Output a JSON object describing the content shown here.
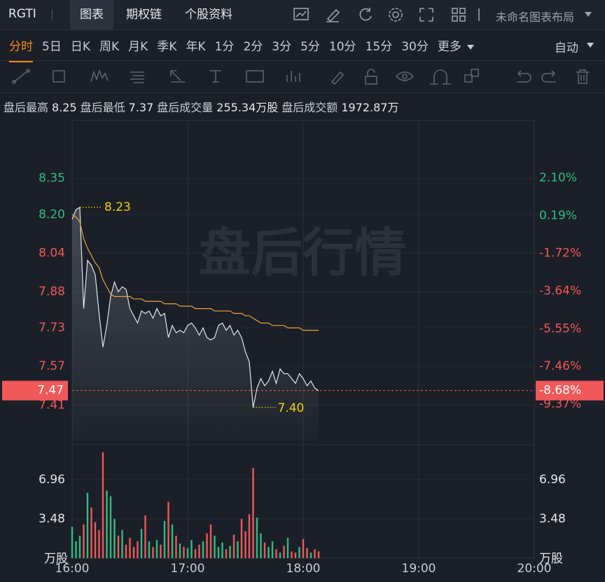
{
  "header": {
    "symbol": "RGTI",
    "tabs": [
      "图表",
      "期权链",
      "个股资料"
    ],
    "layout_name": "未命名图表布局"
  },
  "periods": [
    "分时",
    "5日",
    "日K",
    "周K",
    "月K",
    "季K",
    "年K",
    "1分",
    "2分",
    "3分",
    "5分",
    "10分",
    "15分",
    "30分",
    "更多"
  ],
  "scale_mode": "自动",
  "info": [
    {
      "label": "盘后最高",
      "value": "8.25"
    },
    {
      "label": "盘后最低",
      "value": "7.37"
    },
    {
      "label": "盘后成交量",
      "value": "255.34万股"
    },
    {
      "label": "盘后成交额",
      "value": "1972.87万"
    }
  ],
  "chart_data": {
    "type": "line",
    "watermark": "盘后行情",
    "xlim": [
      "16:00",
      "20:00"
    ],
    "xticks": [
      "16:00",
      "17:00",
      "18:00",
      "19:00",
      "20:00"
    ],
    "x": [
      "16:00",
      "16:02",
      "16:04",
      "16:06",
      "16:08",
      "16:10",
      "16:12",
      "16:14",
      "16:16",
      "16:18",
      "16:20",
      "16:22",
      "16:24",
      "16:26",
      "16:28",
      "16:30",
      "16:32",
      "16:34",
      "16:36",
      "16:38",
      "16:40",
      "16:42",
      "16:44",
      "16:46",
      "16:48",
      "16:50",
      "16:52",
      "16:54",
      "16:56",
      "16:58",
      "17:00",
      "17:02",
      "17:04",
      "17:06",
      "17:08",
      "17:10",
      "17:12",
      "17:14",
      "17:16",
      "17:18",
      "17:20",
      "17:22",
      "17:24",
      "17:26",
      "17:28",
      "17:30",
      "17:32",
      "17:34",
      "17:36",
      "17:38",
      "17:40",
      "17:42",
      "17:44",
      "17:46",
      "17:48",
      "17:50",
      "17:52",
      "17:54",
      "17:56",
      "17:58",
      "18:00",
      "18:02",
      "18:04",
      "18:06",
      "18:08"
    ],
    "ylim": [
      7.26,
      8.59
    ],
    "yticks": [
      8.35,
      {
        "value": 8.2,
        "label": "8.20"
      },
      8.04,
      7.88,
      7.73,
      7.57,
      7.41
    ],
    "y2lim": [
      -11.25,
      5.01
    ],
    "y2ticks": [
      {
        "value": 2.1,
        "label": "2.10%"
      },
      {
        "value": 0.19,
        "label": "0.19%"
      },
      {
        "value": -1.72,
        "label": "-1.72%"
      },
      {
        "value": -3.64,
        "label": "-3.64%"
      },
      {
        "value": -5.55,
        "label": "-5.55%"
      },
      {
        "value": -7.46,
        "label": "-7.46%"
      },
      {
        "value": -9.37,
        "label": "-9.37%"
      }
    ],
    "up_color": "#2dbd85",
    "down_color": "#f0585a",
    "series": [
      {
        "color": "#e3e6eb",
        "values": [
          8.18,
          8.22,
          8.23,
          7.81,
          8.01,
          7.99,
          7.95,
          7.79,
          7.65,
          7.74,
          7.86,
          7.92,
          7.88,
          7.9,
          7.89,
          7.81,
          7.78,
          7.75,
          7.8,
          7.79,
          7.8,
          7.77,
          7.81,
          7.78,
          7.79,
          7.69,
          7.74,
          7.71,
          7.72,
          7.71,
          7.74,
          7.75,
          7.73,
          7.7,
          7.73,
          7.69,
          7.68,
          7.69,
          7.74,
          7.75,
          7.72,
          7.74,
          7.7,
          7.72,
          7.69,
          7.63,
          7.59,
          7.4,
          7.48,
          7.52,
          7.49,
          7.51,
          7.55,
          7.5,
          7.56,
          7.54,
          7.54,
          7.52,
          7.5,
          7.54,
          7.52,
          7.49,
          7.51,
          7.48,
          7.47
        ]
      },
      {
        "color": "#e8a33d",
        "values": [
          8.2,
          8.19,
          8.17,
          8.1,
          8.06,
          8.03,
          8.0,
          7.98,
          7.93,
          7.9,
          7.87,
          7.86,
          7.86,
          7.86,
          7.86,
          7.86,
          7.85,
          7.85,
          7.85,
          7.84,
          7.84,
          7.84,
          7.84,
          7.84,
          7.83,
          7.83,
          7.83,
          7.83,
          7.82,
          7.82,
          7.82,
          7.82,
          7.81,
          7.81,
          7.81,
          7.81,
          7.81,
          7.8,
          7.8,
          7.8,
          7.8,
          7.8,
          7.79,
          7.79,
          7.79,
          7.78,
          7.78,
          7.77,
          7.76,
          7.75,
          7.75,
          7.75,
          7.74,
          7.74,
          7.74,
          7.74,
          7.73,
          7.73,
          7.73,
          7.73,
          7.72,
          7.72,
          7.72,
          7.72,
          7.72
        ]
      }
    ],
    "high_mark": {
      "x": "16:04",
      "value": 8.23
    },
    "low_mark": {
      "x": "17:34",
      "value": 7.4,
      "label": "7.40"
    },
    "last_price": 7.47,
    "last_change": {
      "value": -8.68,
      "label": "-8.68%"
    },
    "last_color": "#f0585a",
    "volume": {
      "unit": "万股",
      "ylim": [
        0,
        9.76
      ],
      "yticks": [
        6.96,
        3.48
      ],
      "values": [
        2.8,
        1.5,
        2.0,
        3.0,
        5.8,
        4.5,
        3.2,
        2.5,
        9.4,
        6.0,
        5.5,
        3.5,
        2.0,
        2.5,
        1.2,
        1.8,
        1.0,
        1.5,
        2.6,
        3.8,
        1.5,
        1.0,
        1.6,
        1.2,
        3.3,
        5.0,
        3.0,
        2.0,
        1.3,
        1.0,
        0.9,
        1.6,
        0.8,
        1.2,
        1.5,
        2.2,
        3.0,
        2.0,
        1.0,
        1.4,
        0.8,
        1.1,
        2.1,
        1.5,
        3.5,
        2.4,
        3.9,
        8.0,
        3.6,
        2.2,
        1.4,
        1.0,
        1.5,
        0.8,
        0.5,
        1.1,
        1.8,
        0.6,
        0.5,
        1.0,
        1.7,
        0.9,
        0.5,
        0.8,
        0.6
      ]
    }
  }
}
